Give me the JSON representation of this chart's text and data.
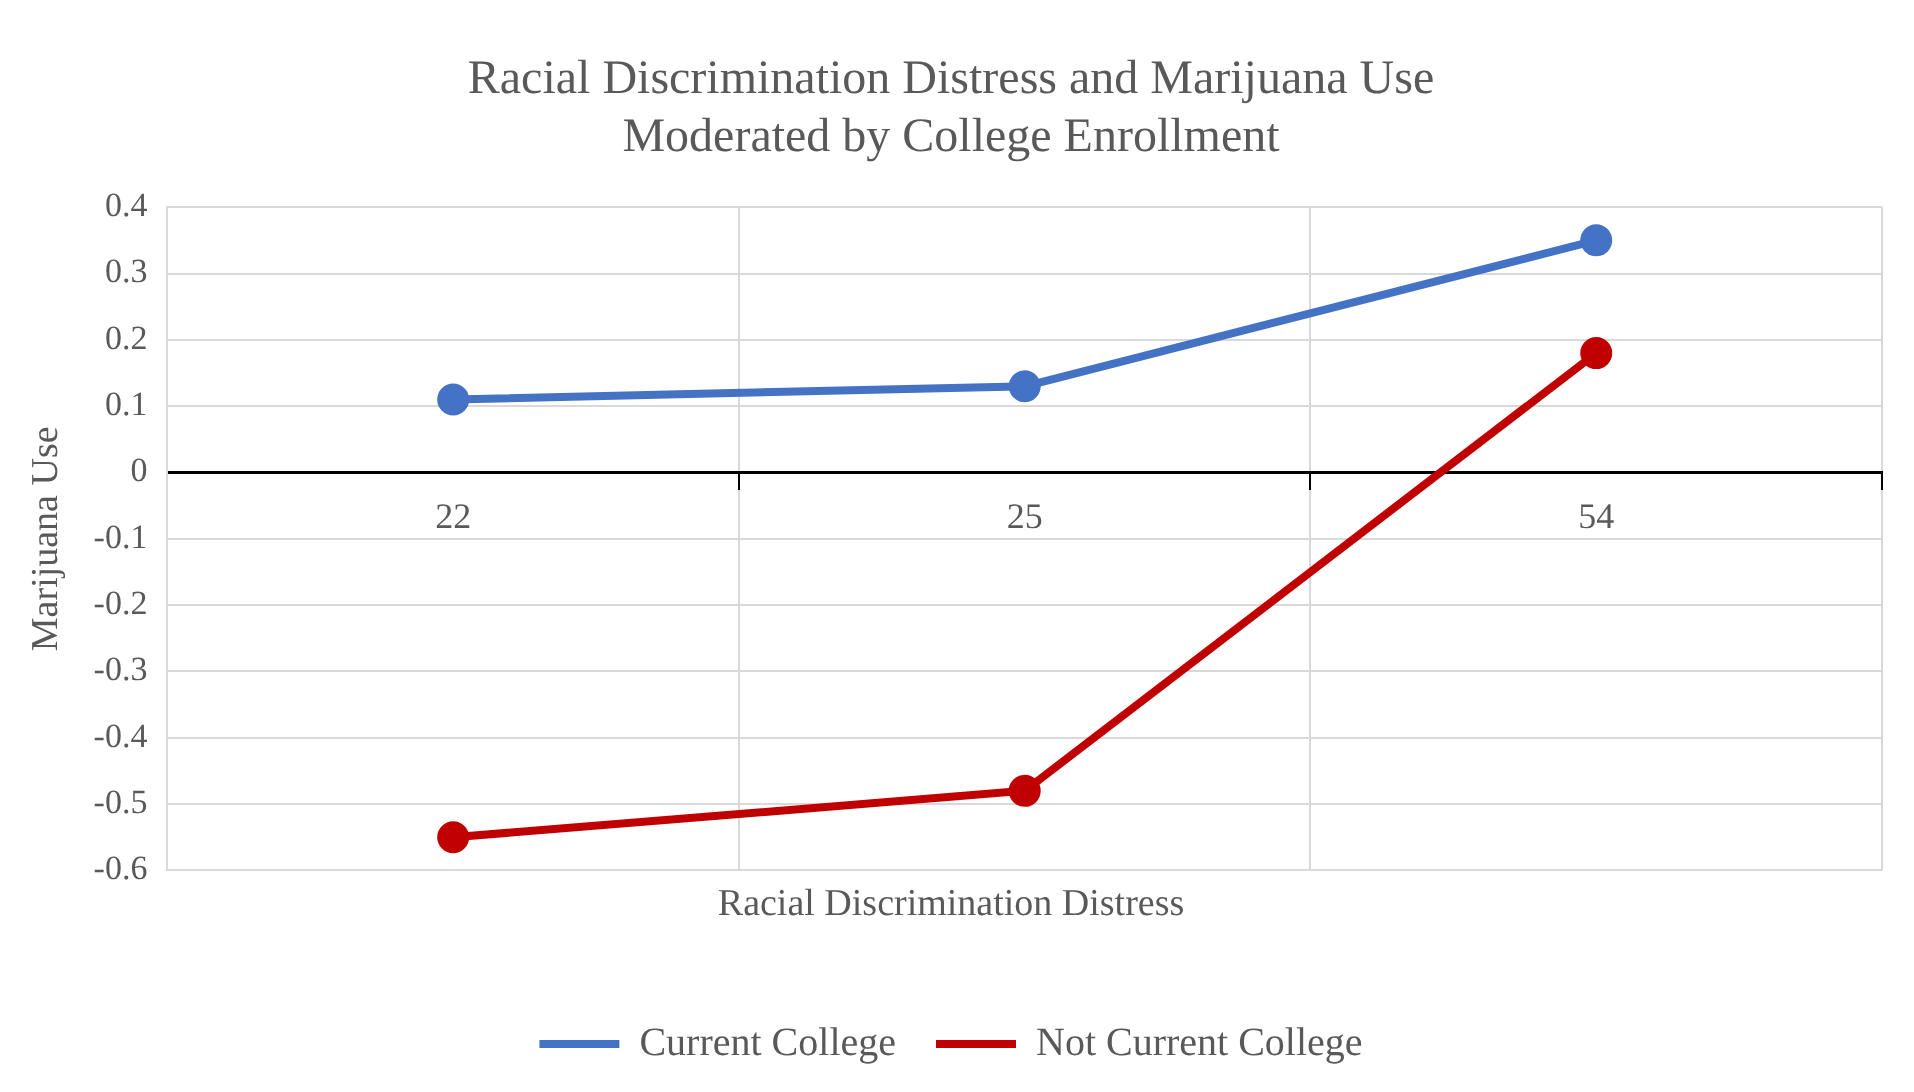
{
  "chart_data": {
    "type": "line",
    "title": "Racial Discrimination Distress and Marijuana Use\nModerated by College Enrollment",
    "xlabel": "Racial Discrimination Distress",
    "ylabel": "Marijuana Use",
    "categories": [
      "22",
      "25",
      "54"
    ],
    "series": [
      {
        "name": "Current College",
        "color": "#4472c4",
        "values": [
          0.11,
          0.13,
          0.35
        ]
      },
      {
        "name": "Not Current College",
        "color": "#c00000",
        "values": [
          -0.55,
          -0.48,
          0.18
        ]
      }
    ],
    "ylim": [
      -0.6,
      0.4
    ],
    "yticks": [
      -0.6,
      -0.5,
      -0.4,
      -0.3,
      -0.2,
      -0.1,
      0,
      0.1,
      0.2,
      0.3,
      0.4
    ],
    "grid": true,
    "legend": "bottom",
    "marker": "circle",
    "line_style": "solid"
  }
}
